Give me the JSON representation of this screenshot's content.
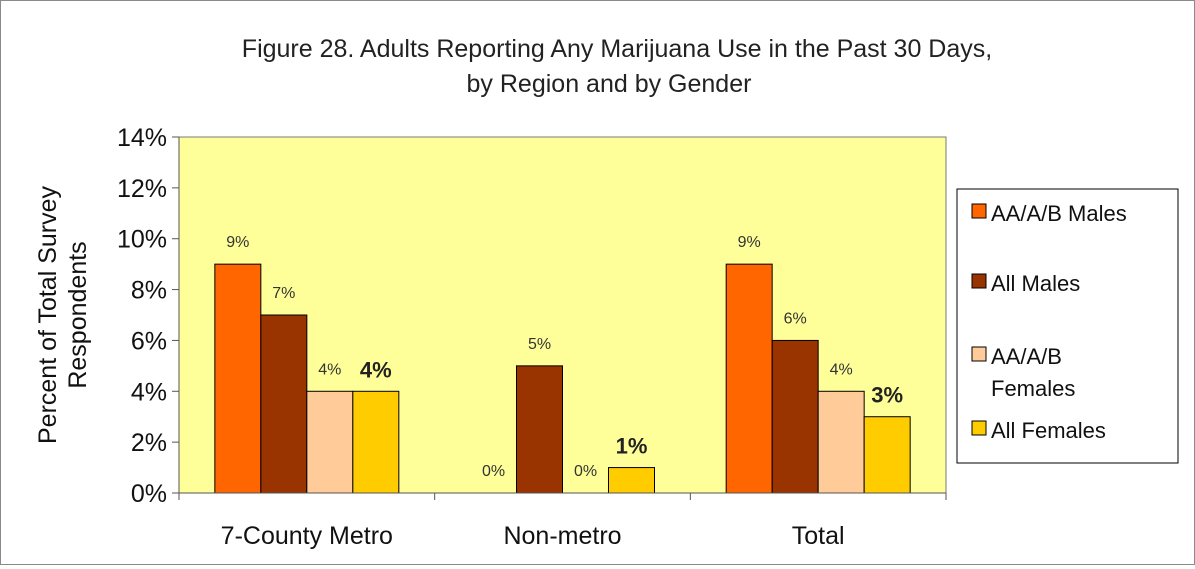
{
  "chart_data": {
    "type": "bar",
    "title": "Figure 28. Adults Reporting Any Marijuana Use in  the Past 30 Days, by Region and by Gender",
    "title_lines": [
      "Figure 28. Adults Reporting Any Marijuana Use in  the Past 30 Days,",
      "by Region and by Gender"
    ],
    "xlabel": "",
    "ylabel": "Percent of Total Survey Respondents",
    "ylabel_lines": [
      "Percent of Total Survey",
      "Respondents"
    ],
    "ylim": [
      0,
      14
    ],
    "yticks": [
      "0%",
      "2%",
      "4%",
      "6%",
      "8%",
      "10%",
      "12%",
      "14%"
    ],
    "grid": false,
    "legend_position": "right",
    "plot_background": "#ffff99",
    "categories": [
      "7-County Metro",
      "Non-metro",
      "Total"
    ],
    "series": [
      {
        "name": "AA/A/B Males",
        "legend_lines": [
          "AA/A/B Males"
        ],
        "color": "#ff6600",
        "values": [
          9,
          0,
          9
        ],
        "labels": [
          "9%",
          "0%",
          "9%"
        ],
        "label_style": "regular"
      },
      {
        "name": "All Males",
        "legend_lines": [
          "All Males"
        ],
        "color": "#993300",
        "values": [
          7,
          5,
          6
        ],
        "labels": [
          "7%",
          "5%",
          "6%"
        ],
        "label_style": "regular"
      },
      {
        "name": "AA/A/B Females",
        "legend_lines": [
          "AA/A/B",
          "Females"
        ],
        "color": "#ffcc99",
        "values": [
          4,
          0,
          4
        ],
        "labels": [
          "4%",
          "0%",
          "4%"
        ],
        "label_style": "regular"
      },
      {
        "name": "All Females",
        "legend_lines": [
          "All Females"
        ],
        "color": "#ffcc00",
        "values": [
          4,
          1,
          3
        ],
        "labels": [
          "4%",
          "1%",
          "3%"
        ],
        "label_style": "bold"
      }
    ]
  }
}
